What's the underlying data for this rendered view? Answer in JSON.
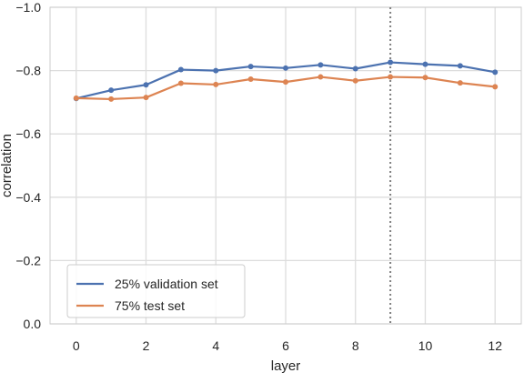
{
  "chart_data": {
    "type": "line",
    "xlabel": "layer",
    "ylabel": "correlation",
    "x": [
      0,
      1,
      2,
      3,
      4,
      5,
      6,
      7,
      8,
      9,
      10,
      11,
      12
    ],
    "x_ticks": [
      "0",
      "2",
      "4",
      "6",
      "8",
      "10",
      "12"
    ],
    "x_tick_values": [
      0,
      2,
      4,
      6,
      8,
      10,
      12
    ],
    "y_ticks": [
      "0.0",
      "−0.2",
      "−0.4",
      "−0.6",
      "−0.8",
      "−1.0"
    ],
    "y_tick_values": [
      0.0,
      -0.2,
      -0.4,
      -0.6,
      -0.8,
      -1.0
    ],
    "xlim": [
      -0.75,
      12.75
    ],
    "ylim": [
      0.0,
      -1.0
    ],
    "y_inverted": true,
    "grid": true,
    "legend_position": "lower-left",
    "vline": {
      "x": 9,
      "style": "dotted",
      "color": "#808080"
    },
    "series": [
      {
        "name": "25% validation set",
        "color": "#4c72b0",
        "values": [
          -0.712,
          -0.738,
          -0.755,
          -0.803,
          -0.8,
          -0.813,
          -0.808,
          -0.818,
          -0.806,
          -0.826,
          -0.82,
          -0.815,
          -0.795
        ]
      },
      {
        "name": "75% test set",
        "color": "#dd8452",
        "values": [
          -0.713,
          -0.71,
          -0.715,
          -0.76,
          -0.756,
          -0.773,
          -0.764,
          -0.78,
          -0.768,
          -0.78,
          -0.778,
          -0.761,
          -0.749
        ]
      }
    ]
  }
}
